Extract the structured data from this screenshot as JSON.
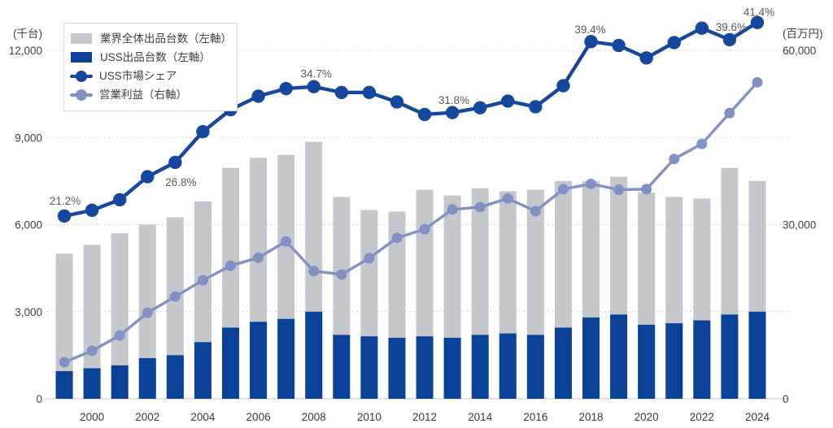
{
  "chart_data": {
    "type": "combo-bar-line",
    "title": "",
    "left_axis": {
      "unit_label": "(千台)",
      "ticks": [
        0,
        3000,
        6000,
        9000,
        12000
      ],
      "tick_labels": [
        "0",
        "3,000",
        "6,000",
        "9,000",
        "12,000"
      ],
      "min": 0,
      "max": 12000,
      "grid": "dotted"
    },
    "right_axis": {
      "unit_label": "(百万円)",
      "ticks": [
        0,
        30000,
        60000
      ],
      "tick_labels": [
        "0",
        "30,000",
        "60,000"
      ],
      "min": 0,
      "max": 60000
    },
    "x": [
      1999,
      2000,
      2001,
      2002,
      2003,
      2004,
      2005,
      2006,
      2007,
      2008,
      2009,
      2010,
      2011,
      2012,
      2013,
      2014,
      2015,
      2016,
      2017,
      2018,
      2019,
      2020,
      2021,
      2022,
      2023,
      2024
    ],
    "x_tick_labels": [
      "2000",
      "2002",
      "2004",
      "2006",
      "2008",
      "2010",
      "2012",
      "2014",
      "2016",
      "2018",
      "2020",
      "2022",
      "2024"
    ],
    "legend_position": "top-left",
    "series": [
      {
        "name": "業界全体出品台数（左軸）",
        "type": "bar",
        "axis": "left",
        "color": "#c4c8cc",
        "values": [
          5000,
          5300,
          5700,
          6000,
          6250,
          6800,
          7950,
          8300,
          8400,
          8850,
          6950,
          6500,
          6450,
          7200,
          7000,
          7250,
          7150,
          7200,
          7500,
          7500,
          7650,
          7100,
          6950,
          6900,
          7950,
          7500
        ]
      },
      {
        "name": "USS出品台数（左軸）",
        "type": "bar",
        "axis": "left",
        "color": "#0a4298",
        "values": [
          950,
          1050,
          1150,
          1400,
          1500,
          1950,
          2450,
          2650,
          2750,
          3000,
          2200,
          2150,
          2100,
          2150,
          2100,
          2200,
          2250,
          2200,
          2450,
          2800,
          2900,
          2550,
          2600,
          2700,
          2900,
          3000
        ]
      },
      {
        "name": "USS市場シェア",
        "type": "line",
        "axis": "percent",
        "unit": "%",
        "color": "#16479e",
        "values": [
          21.2,
          21.8,
          22.9,
          25.3,
          26.8,
          30.0,
          32.3,
          33.7,
          34.5,
          34.7,
          34.1,
          34.1,
          33.1,
          31.8,
          32.0,
          32.5,
          33.2,
          32.6,
          34.8,
          39.4,
          39.0,
          37.7,
          39.3,
          40.8,
          39.6,
          41.4
        ]
      },
      {
        "name": "営業利益（右軸）",
        "type": "line",
        "axis": "right",
        "color": "#8191c3",
        "values": [
          6300,
          8250,
          10900,
          14800,
          17600,
          20400,
          22900,
          24300,
          27100,
          22000,
          21400,
          24200,
          27700,
          29200,
          32600,
          33000,
          34500,
          32300,
          36100,
          37000,
          36000,
          36100,
          41300,
          43900,
          49200,
          54500
        ]
      }
    ],
    "annotations": [
      {
        "year": 1999,
        "index": 0,
        "text": "21.2%"
      },
      {
        "year": 2003,
        "index": 4,
        "text": "26.8%"
      },
      {
        "year": 2008,
        "index": 9,
        "text": "34.7%"
      },
      {
        "year": 2012,
        "index": 13,
        "text": "31.8%"
      },
      {
        "year": 2018,
        "index": 19,
        "text": "39.4%"
      },
      {
        "year": 2023,
        "index": 24,
        "text": "39.6%"
      },
      {
        "year": 2024,
        "index": 25,
        "text": "41.4%"
      }
    ],
    "colors": {
      "gridline": "#d4d4d4",
      "axis_line": "#d9d9d9",
      "tick_text": "#404040",
      "x_label_text": "#3a3a3a",
      "annotation_text": "#595959",
      "background": "#ffffff"
    }
  }
}
